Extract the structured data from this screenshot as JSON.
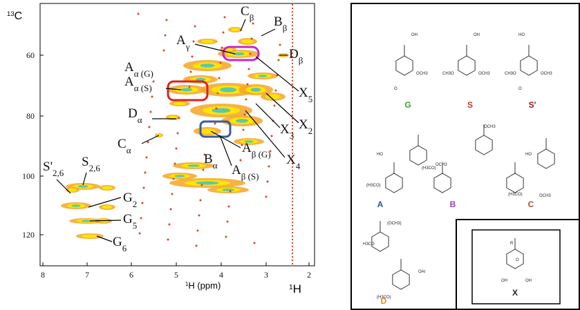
{
  "spectrum": {
    "y_axis_label": {
      "sup": "13",
      "main": "C"
    },
    "x_axis_label": {
      "sup": "1",
      "main": "H (ppm)"
    },
    "corner_label": {
      "sup": "1",
      "main": "H"
    },
    "xticks": [
      8,
      7,
      6,
      5,
      4,
      3,
      2
    ],
    "yticks": [
      60,
      80,
      100,
      120
    ],
    "annotations": [
      {
        "main": "C",
        "sub": "β"
      },
      {
        "main": "B",
        "sub": "β"
      },
      {
        "main": "A",
        "sub": "γ"
      },
      {
        "main": "D",
        "sub": "β"
      },
      {
        "main": "A",
        "sub": "α (G)"
      },
      {
        "main": "A",
        "sub": "α (S)"
      },
      {
        "main": "X",
        "sub": "5"
      },
      {
        "main": "X",
        "sub": "2"
      },
      {
        "main": "D",
        "sub": "α"
      },
      {
        "main": "X",
        "sub": "3"
      },
      {
        "main": "A",
        "sub": "β (G)"
      },
      {
        "main": "X",
        "sub": "4"
      },
      {
        "main": "C",
        "sub": "α"
      },
      {
        "main": "B",
        "sub": "α"
      },
      {
        "main": "A",
        "sub": "β (S)"
      },
      {
        "main": "S'",
        "sub": "2,6"
      },
      {
        "main": "S",
        "sub": "2,6"
      },
      {
        "main": "G",
        "sub": "2"
      },
      {
        "main": "G",
        "sub": "5"
      },
      {
        "main": "G",
        "sub": "6"
      }
    ]
  },
  "structures": {
    "items": [
      {
        "label": "G",
        "color": "#3a9a3a",
        "texts": [
          "OH",
          "OCH3",
          "O"
        ]
      },
      {
        "label": "S",
        "color": "#c0392b",
        "texts": [
          "OH",
          "CH3O",
          "OCH3"
        ]
      },
      {
        "label": "S'",
        "color": "#8b1a1a",
        "texts": [
          "HO",
          "O",
          "CH3O",
          "OCH3"
        ]
      },
      {
        "label": "A",
        "color": "#2e4fa0",
        "texts": [
          "HO",
          "(H3CO)",
          "OCH3"
        ]
      },
      {
        "label": "B",
        "color": "#8e44ad",
        "texts": [
          "OCH3",
          "(H3CO)"
        ]
      },
      {
        "label": "C",
        "color": "#a0522d",
        "texts": [
          "HO",
          "(H3CO)",
          "OCH3"
        ]
      },
      {
        "label": "D",
        "color": "#e08a1e",
        "texts": [
          "(OCH3)",
          "H3CO",
          "OAr",
          "(H3CO)"
        ]
      },
      {
        "label": "X",
        "color": "#222222",
        "texts": [
          "R",
          "O",
          "OH",
          "OH"
        ]
      }
    ]
  }
}
